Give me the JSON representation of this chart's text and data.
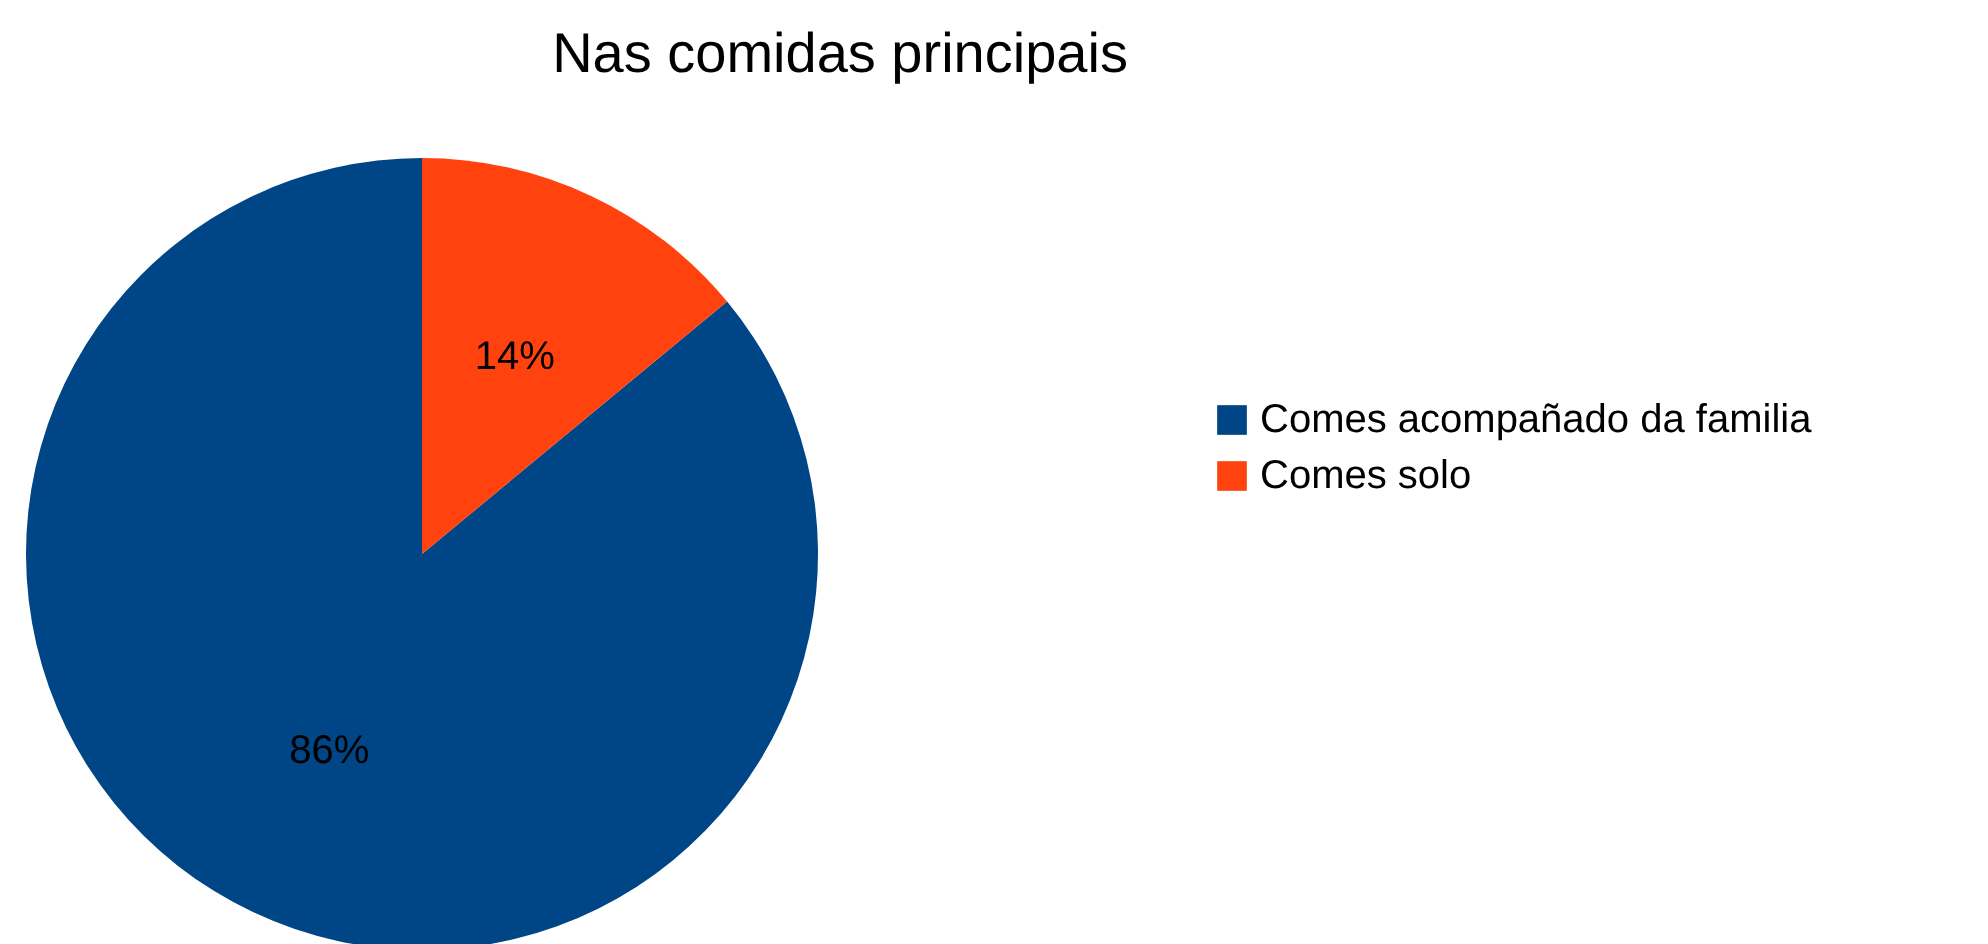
{
  "chart_data": {
    "type": "pie",
    "title": "Nas comidas principais",
    "categories": [
      "Comes acompañado da familia",
      "Comes solo"
    ],
    "values": [
      86,
      14
    ],
    "colors": [
      "#004586",
      "#ff420e"
    ],
    "value_labels": [
      "86%",
      "14%"
    ],
    "legend": "right"
  }
}
